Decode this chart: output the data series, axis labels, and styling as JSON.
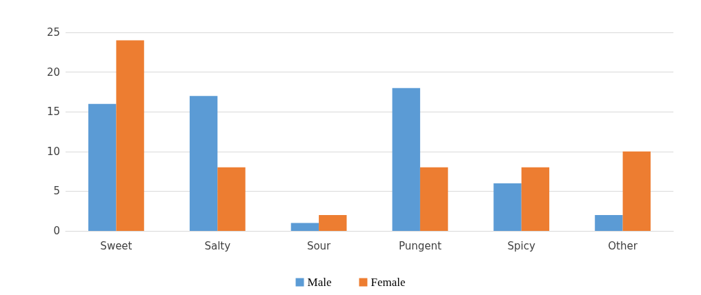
{
  "chart_data": {
    "type": "bar",
    "categories": [
      "Sweet",
      "Salty",
      "Sour",
      "Pungent",
      "Spicy",
      "Other"
    ],
    "series": [
      {
        "name": "Male",
        "color": "#5b9bd5",
        "values": [
          16,
          17,
          1,
          18,
          6,
          2
        ]
      },
      {
        "name": "Female",
        "color": "#ed7d31",
        "values": [
          24,
          8,
          2,
          8,
          8,
          10
        ]
      }
    ],
    "ylim": [
      0,
      25
    ],
    "yticks": [
      0,
      5,
      10,
      15,
      20,
      25
    ],
    "grid": "y",
    "legend": "bottom"
  }
}
